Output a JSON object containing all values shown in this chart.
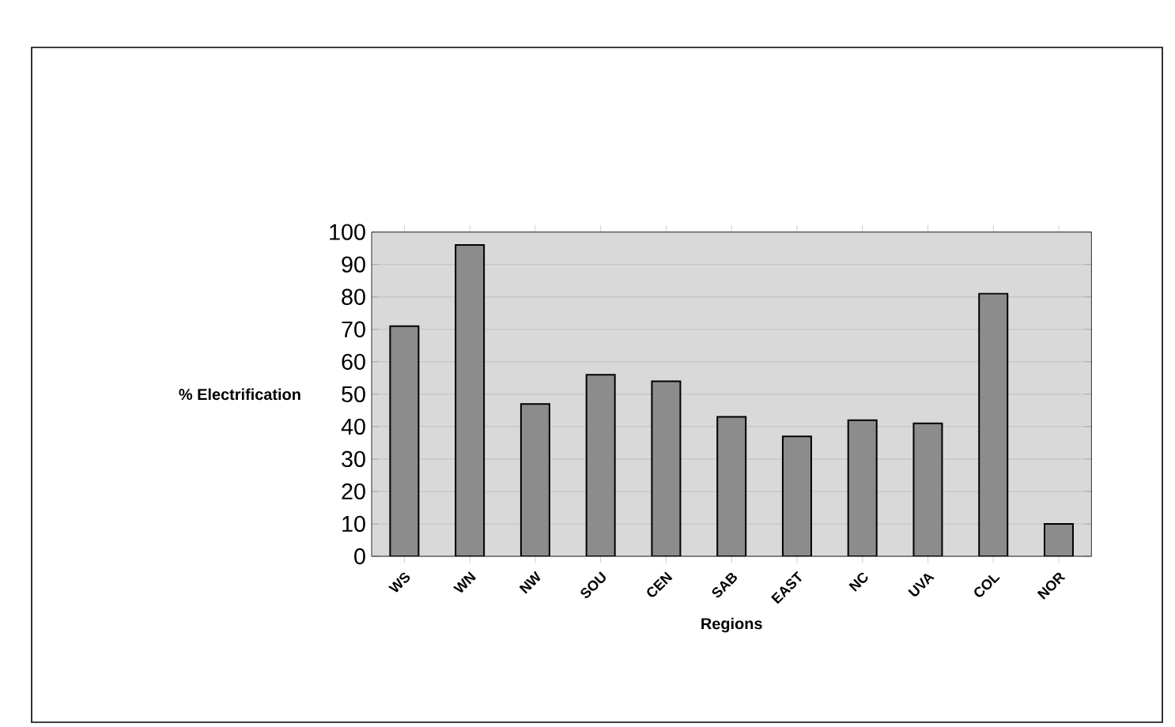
{
  "chart_data": {
    "type": "bar",
    "xlabel": "Regions",
    "ylabel": "% Electrification",
    "categories": [
      "WS",
      "WN",
      "NW",
      "SOU",
      "CEN",
      "SAB",
      "EAST",
      "NC",
      "UVA",
      "COL",
      "NOR"
    ],
    "values": [
      71,
      96,
      47,
      56,
      54,
      43,
      37,
      42,
      41,
      81,
      10
    ],
    "color": "#8c8c8c",
    "ylim": [
      0,
      100
    ],
    "yticks": [
      0,
      10,
      20,
      30,
      40,
      50,
      60,
      70,
      80,
      90,
      100
    ],
    "grid": "y"
  }
}
